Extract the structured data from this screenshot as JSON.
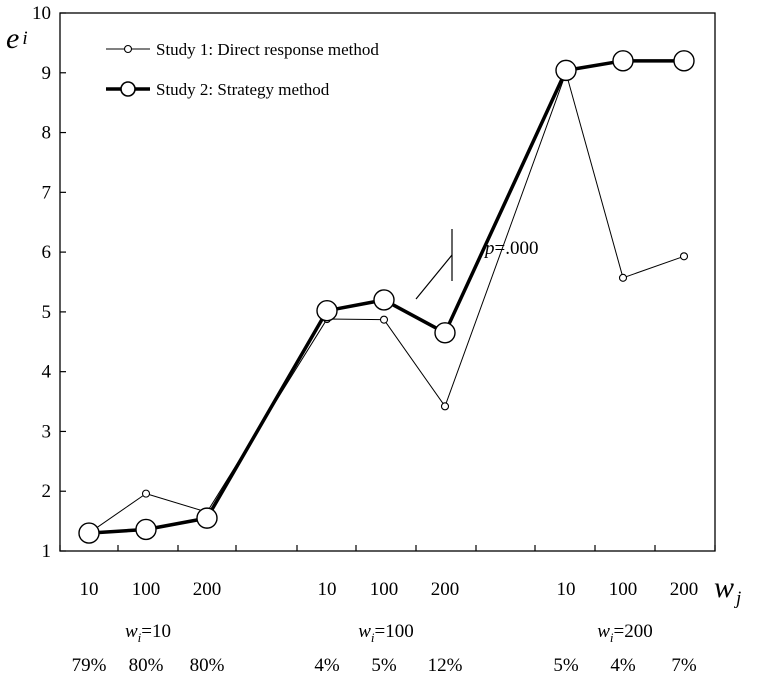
{
  "chart_data": {
    "type": "line",
    "y_axis_label_main": "e",
    "y_axis_label_sub": "i",
    "x_axis_label_main": "w",
    "x_axis_label_sub": "j",
    "ylim": [
      1,
      10
    ],
    "yticks": [
      "1",
      "2",
      "3",
      "4",
      "5",
      "6",
      "7",
      "8",
      "9",
      "10"
    ],
    "grid": false,
    "legend_position": "top-left",
    "groups": [
      {
        "label_main": "w",
        "label_sub": "i",
        "label_value": "=10",
        "x_ticks": [
          "10",
          "100",
          "200"
        ],
        "percentages": [
          "79%",
          "80%",
          "80%"
        ]
      },
      {
        "label_main": "w",
        "label_sub": "i",
        "label_value": "=100",
        "x_ticks": [
          "10",
          "100",
          "200"
        ],
        "percentages": [
          "4%",
          "5%",
          "12%"
        ]
      },
      {
        "label_main": "w",
        "label_sub": "i",
        "label_value": "=200",
        "x_ticks": [
          "10",
          "100",
          "200"
        ],
        "percentages": [
          "5%",
          "4%",
          "7%"
        ]
      }
    ],
    "series": [
      {
        "name": "Study 1: Direct response method",
        "style": "thin",
        "values": [
          [
            1.3,
            1.96,
            1.65
          ],
          [
            4.88,
            4.87,
            3.42
          ],
          [
            9.0,
            5.57,
            5.93
          ]
        ]
      },
      {
        "name": "Study 2: Strategy method",
        "style": "thick",
        "values": [
          [
            1.3,
            1.36,
            1.55
          ],
          [
            5.02,
            5.2,
            4.65
          ],
          [
            9.04,
            9.2,
            9.2
          ]
        ]
      }
    ],
    "annotation": {
      "label_italic": "p",
      "label_rest": "=.000"
    }
  }
}
